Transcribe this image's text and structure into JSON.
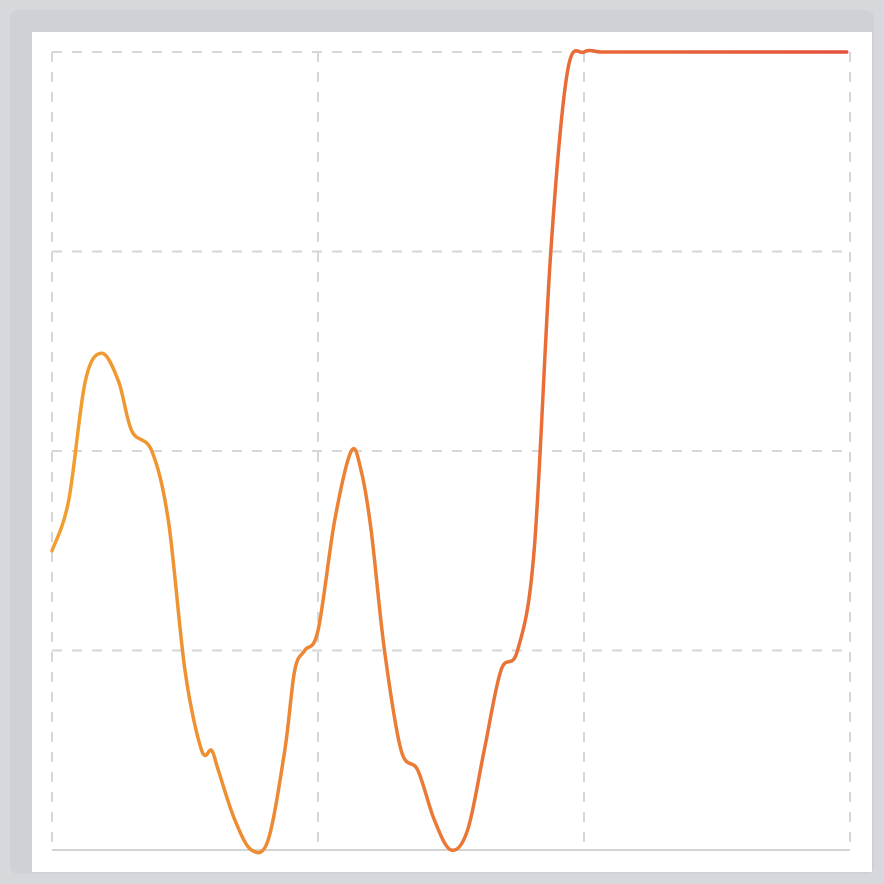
{
  "chart_data": {
    "type": "line",
    "title": "",
    "xlabel": "",
    "ylabel": "",
    "xlim": [
      0,
      24
    ],
    "ylim": [
      0,
      8
    ],
    "grid": true,
    "x_gridlines": [
      0,
      8,
      16,
      24
    ],
    "y_gridlines": [
      0,
      2,
      4,
      6,
      8
    ],
    "series": [
      {
        "x": [
          0,
          0.5,
          1,
          1.5,
          2,
          2.4,
          3,
          3.5,
          4,
          4.5,
          4.8,
          5,
          5.5,
          6,
          6.5,
          7,
          7.3,
          7.6,
          8,
          8.5,
          9,
          9.3,
          9.6,
          10,
          10.5,
          11,
          11.5,
          12,
          12.5,
          13,
          13.5,
          14,
          14.5,
          15,
          15.5,
          16,
          16.5,
          17,
          17.5,
          18,
          18.5,
          19,
          19.5,
          20,
          20.5,
          21,
          21.5,
          22,
          22.5,
          23,
          23.5,
          23.9
        ],
        "y": [
          3,
          3.5,
          4.7,
          4.98,
          4.7,
          4.2,
          4,
          3.3,
          1.8,
          1,
          1,
          0.8,
          0.3,
          0,
          0.1,
          1,
          1.8,
          2,
          2.2,
          3.3,
          4,
          3.8,
          3.2,
          2,
          1,
          0.8,
          0.3,
          0,
          0.2,
          1,
          1.8,
          2,
          3,
          6,
          7.8,
          8,
          8,
          8,
          8,
          8,
          8,
          8,
          8,
          8,
          8,
          8,
          8,
          8,
          8,
          8,
          8,
          8
        ]
      }
    ],
    "colors": {
      "start": "#f0a030",
      "end": "#e4503c",
      "grid": "#d6d6d6",
      "axis": "#d4d4d4",
      "background": "#ffffff",
      "frame": "#cfd1d6"
    }
  }
}
